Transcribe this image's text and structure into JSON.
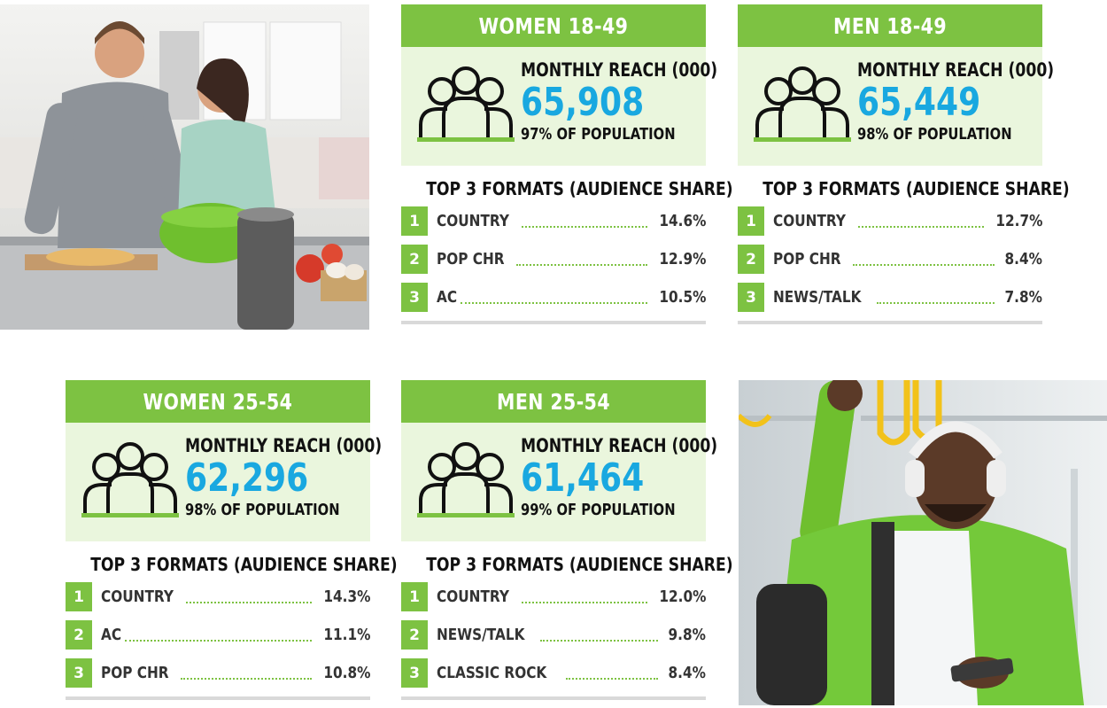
{
  "panels": [
    {
      "title": "WOMEN 18-49",
      "reach_label": "MONTHLY REACH (000)",
      "reach_value": "65,908",
      "population": "97% OF POPULATION",
      "formats_title": "TOP 3 FORMATS (AUDIENCE SHARE)",
      "formats": [
        {
          "rank": "1",
          "name": "COUNTRY",
          "share": "14.6%"
        },
        {
          "rank": "2",
          "name": "POP CHR",
          "share": "12.9%"
        },
        {
          "rank": "3",
          "name": "AC",
          "share": "10.5%"
        }
      ]
    },
    {
      "title": "MEN 18-49",
      "reach_label": "MONTHLY REACH (000)",
      "reach_value": "65,449",
      "population": "98% OF POPULATION",
      "formats_title": "TOP 3 FORMATS (AUDIENCE SHARE)",
      "formats": [
        {
          "rank": "1",
          "name": "COUNTRY",
          "share": "12.7%"
        },
        {
          "rank": "2",
          "name": "POP CHR",
          "share": "8.4%"
        },
        {
          "rank": "3",
          "name": "NEWS/TALK",
          "share": "7.8%"
        }
      ]
    },
    {
      "title": "WOMEN 25-54",
      "reach_label": "MONTHLY REACH (000)",
      "reach_value": "62,296",
      "population": "98% OF POPULATION",
      "formats_title": "TOP 3 FORMATS (AUDIENCE SHARE)",
      "formats": [
        {
          "rank": "1",
          "name": "COUNTRY",
          "share": "14.3%"
        },
        {
          "rank": "2",
          "name": "AC",
          "share": "11.1%"
        },
        {
          "rank": "3",
          "name": "POP CHR",
          "share": "10.8%"
        }
      ]
    },
    {
      "title": "MEN 25-54",
      "reach_label": "MONTHLY REACH (000)",
      "reach_value": "61,464",
      "population": "99% OF POPULATION",
      "formats_title": "TOP 3 FORMATS (AUDIENCE SHARE)",
      "formats": [
        {
          "rank": "1",
          "name": "COUNTRY",
          "share": "12.0%"
        },
        {
          "rank": "2",
          "name": "NEWS/TALK",
          "share": "9.8%"
        },
        {
          "rank": "3",
          "name": "CLASSIC ROCK",
          "share": "8.4%"
        }
      ]
    }
  ],
  "colors": {
    "accent_green": "#7dc242",
    "reach_blue": "#19a8e0",
    "reach_bg": "#eaf6dd"
  },
  "icons": {
    "audience": "people-group-icon"
  }
}
